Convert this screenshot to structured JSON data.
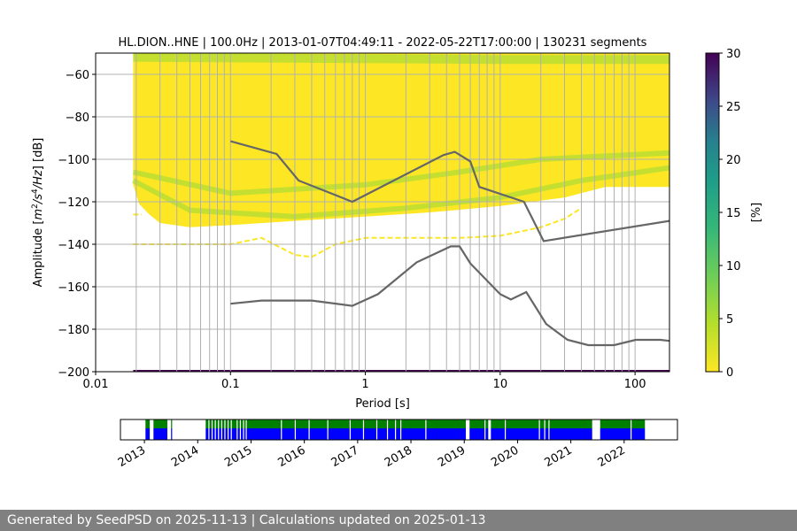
{
  "chart_data": {
    "type": "heatmap",
    "title": "HL.DION..HNE | 100.0Hz | 2013-01-07T04:49:11 - 2022-05-22T17:00:00 | 130231 segments",
    "xlabel": "Period [s]",
    "ylabel_parts": [
      "Amplitude [",
      "m",
      "2",
      "/",
      "s",
      "4",
      "/",
      "Hz",
      "] [dB]"
    ],
    "xscale": "log",
    "xlim": [
      0.01,
      180
    ],
    "ylim": [
      -200,
      -50
    ],
    "xticks": [
      0.01,
      0.1,
      1,
      10,
      100
    ],
    "xtick_labels": [
      "0.01",
      "0.1",
      "1",
      "10",
      "100"
    ],
    "yticks": [
      -60,
      -80,
      -100,
      -120,
      -140,
      -160,
      -180,
      -200
    ],
    "ytick_labels": [
      "−60",
      "−80",
      "−100",
      "−120",
      "−140",
      "−160",
      "−180",
      "−200"
    ],
    "grid": true,
    "colorbar": {
      "label": "[%]",
      "range": [
        0,
        30
      ],
      "ticks": [
        "0",
        "5",
        "10",
        "15",
        "20",
        "25",
        "30"
      ],
      "colormap": "viridis_r"
    },
    "psd_region": {
      "upper": [
        [
          0.019,
          -50
        ],
        [
          180,
          -50
        ]
      ],
      "lower": [
        [
          0.019,
          -112
        ],
        [
          0.021,
          -121
        ],
        [
          0.025,
          -126
        ],
        [
          0.03,
          -130
        ],
        [
          0.05,
          -132
        ],
        [
          0.1,
          -131
        ],
        [
          0.3,
          -129
        ],
        [
          1,
          -127
        ],
        [
          3,
          -125
        ],
        [
          10,
          -122
        ],
        [
          30,
          -118
        ],
        [
          60,
          -113
        ],
        [
          180,
          -113
        ]
      ]
    },
    "psd_modes": [
      [
        [
          0.019,
          -110
        ],
        [
          0.05,
          -124
        ],
        [
          0.3,
          -127
        ],
        [
          2,
          -123
        ],
        [
          10,
          -118
        ],
        [
          40,
          -110
        ],
        [
          180,
          -104
        ]
      ],
      [
        [
          0.019,
          -106
        ],
        [
          0.1,
          -116
        ],
        [
          1,
          -112
        ],
        [
          5,
          -106
        ],
        [
          20,
          -100
        ],
        [
          180,
          -97
        ]
      ],
      [
        [
          0.019,
          -52
        ],
        [
          10,
          -53
        ],
        [
          180,
          -53
        ]
      ]
    ],
    "psd_outliers": [
      [
        [
          0.019,
          -126
        ],
        [
          0.022,
          -126
        ]
      ],
      [
        [
          0.019,
          -140
        ],
        [
          0.1,
          -140
        ],
        [
          0.17,
          -137
        ],
        [
          0.3,
          -145
        ],
        [
          0.4,
          -146
        ],
        [
          0.6,
          -140
        ],
        [
          1,
          -137
        ],
        [
          5,
          -137
        ],
        [
          10,
          -136
        ],
        [
          20,
          -132
        ],
        [
          30,
          -128
        ],
        [
          40,
          -123
        ]
      ],
      [
        [
          0.019,
          -200
        ],
        [
          180,
          -200
        ]
      ]
    ],
    "noise_models": {
      "high": [
        [
          0.1,
          -91.5
        ],
        [
          0.22,
          -97.5
        ],
        [
          0.32,
          -110
        ],
        [
          0.8,
          -120
        ],
        [
          3.8,
          -98
        ],
        [
          4.6,
          -96.5
        ],
        [
          6,
          -101
        ],
        [
          7,
          -113
        ],
        [
          15,
          -120
        ],
        [
          21,
          -138.5
        ],
        [
          180,
          -129
        ]
      ],
      "low": [
        [
          0.1,
          -168
        ],
        [
          0.17,
          -166.5
        ],
        [
          0.4,
          -166.5
        ],
        [
          0.8,
          -169
        ],
        [
          1.24,
          -163.5
        ],
        [
          2.4,
          -148.5
        ],
        [
          4.3,
          -141
        ],
        [
          5,
          -141
        ],
        [
          6,
          -149
        ],
        [
          10,
          -163.5
        ],
        [
          12,
          -166
        ],
        [
          15.6,
          -162.5
        ],
        [
          21.9,
          -177.5
        ],
        [
          31.6,
          -185
        ],
        [
          45,
          -187.5
        ],
        [
          70,
          -187.5
        ],
        [
          101,
          -185
        ],
        [
          154,
          -185
        ],
        [
          180,
          -185.5
        ]
      ]
    },
    "timeline": {
      "xlim": [
        2012.55,
        2023.0
      ],
      "tick_labels": [
        "2013",
        "2014",
        "2015",
        "2016",
        "2017",
        "2018",
        "2019",
        "2020",
        "2021",
        "2022"
      ],
      "coverage": [
        [
          2013.02,
          2013.1
        ],
        [
          2013.17,
          2013.43
        ],
        [
          2013.5,
          2013.52
        ],
        [
          2014.15,
          2021.4
        ],
        [
          2021.55,
          2022.39
        ]
      ],
      "gaps": [
        2014.2,
        2014.26,
        2014.32,
        2014.38,
        2014.44,
        2014.5,
        2014.56,
        2014.62,
        2014.73,
        2014.79,
        2014.85,
        2014.9,
        2015.56,
        2015.82,
        2016.08,
        2016.43,
        2016.85,
        2017.1,
        2017.35,
        2017.55,
        2017.7,
        2017.8,
        2018.27,
        2019.38,
        2019.76,
        2020.4,
        2020.5,
        2020.58,
        2022.12
      ],
      "wide_gaps": [
        [
          2019.03,
          2019.1
        ],
        [
          2019.45,
          2019.5
        ]
      ],
      "colors": {
        "top": "#008000",
        "bottom": "#0000ff"
      }
    },
    "colors": {
      "psd": "#fde725",
      "mode": "#a0da39",
      "noise_model": "#666666",
      "bottom_strip": "#440154",
      "grid": "#b0b0b0"
    }
  },
  "footer": {
    "text": "Generated by SeedPSD on 2025-11-13 | Calculations updated on 2025-01-13"
  }
}
